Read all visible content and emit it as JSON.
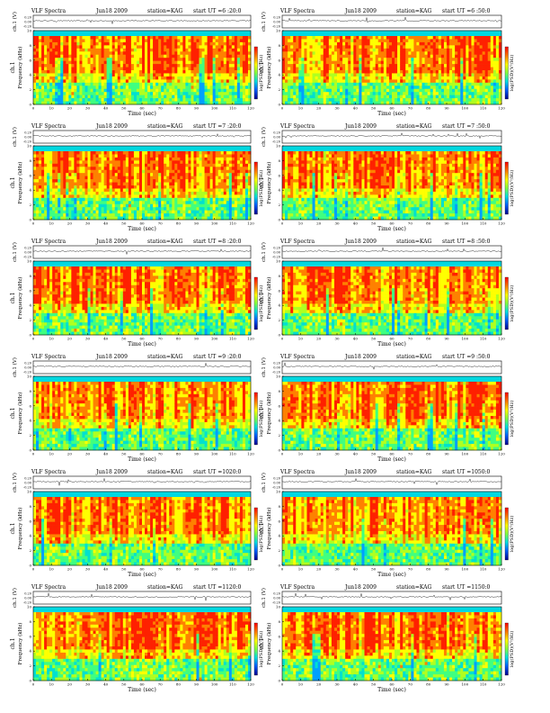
{
  "chart_data": [
    {
      "type": "heatmap",
      "title": "VLF Spectra",
      "date": "Jun18 2009",
      "station": "station=KAG",
      "start": "start  UT  =6 :20:0",
      "xlabel": "Time (sec)",
      "ylabel": "Frequency (kHz)",
      "ch_label": "ch.1",
      "amp_label": "ch.1 (V)",
      "cbar_label": "log(PSD)(V²/Hz)",
      "xlim": [
        0,
        120
      ],
      "ylim": [
        0,
        10
      ],
      "x_ticks": [
        0,
        10,
        20,
        30,
        40,
        50,
        60,
        70,
        80,
        90,
        100,
        110,
        120
      ],
      "y_ticks": [
        0,
        2,
        4,
        6,
        8,
        10
      ],
      "amp_ticks": [
        "0.20",
        "0.00",
        "-0.20"
      ]
    },
    {
      "type": "heatmap",
      "title": "VLF Spectra",
      "date": "Jun18 2009",
      "station": "station=KAG",
      "start": "start  UT  =6 :50:0",
      "xlabel": "Time (sec)",
      "ylabel": "Frequency (kHz)",
      "ch_label": "ch.1",
      "amp_label": "ch.1 (V)",
      "cbar_label": "log(PSD)(V²/Hz)",
      "xlim": [
        0,
        120
      ],
      "ylim": [
        0,
        10
      ],
      "x_ticks": [
        0,
        10,
        20,
        30,
        40,
        50,
        60,
        70,
        80,
        90,
        100,
        110,
        120
      ],
      "y_ticks": [
        0,
        2,
        4,
        6,
        8,
        10
      ],
      "amp_ticks": [
        "0.20",
        "0.00",
        "-0.20"
      ]
    },
    {
      "type": "heatmap",
      "title": "VLF Spectra",
      "date": "Jun18 2009",
      "station": "station=KAG",
      "start": "start  UT  =7 :20:0",
      "xlabel": "Time (sec)",
      "ylabel": "Frequency (kHz)",
      "ch_label": "ch.1",
      "amp_label": "ch.1 (V)",
      "cbar_label": "log(PSD)(V²/Hz)",
      "xlim": [
        0,
        120
      ],
      "ylim": [
        0,
        10
      ],
      "x_ticks": [
        0,
        10,
        20,
        30,
        40,
        50,
        60,
        70,
        80,
        90,
        100,
        110,
        120
      ],
      "y_ticks": [
        0,
        2,
        4,
        6,
        8,
        10
      ],
      "amp_ticks": [
        "0.20",
        "0.00",
        "-0.20"
      ]
    },
    {
      "type": "heatmap",
      "title": "VLF Spectra",
      "date": "Jun18 2009",
      "station": "station=KAG",
      "start": "start  UT  =7 :50:0",
      "xlabel": "Time (sec)",
      "ylabel": "Frequency (kHz)",
      "ch_label": "ch.1",
      "amp_label": "ch.1 (V)",
      "cbar_label": "log(PSD)(V²/Hz)",
      "xlim": [
        0,
        120
      ],
      "ylim": [
        0,
        10
      ],
      "x_ticks": [
        0,
        10,
        20,
        30,
        40,
        50,
        60,
        70,
        80,
        90,
        100,
        110,
        120
      ],
      "y_ticks": [
        0,
        2,
        4,
        6,
        8,
        10
      ],
      "amp_ticks": [
        "0.20",
        "0.00",
        "-0.20"
      ]
    },
    {
      "type": "heatmap",
      "title": "VLF Spectra",
      "date": "Jun18 2009",
      "station": "station=KAG",
      "start": "start  UT  =8 :20:0",
      "xlabel": "Time (sec)",
      "ylabel": "Frequency (kHz)",
      "ch_label": "ch.1",
      "amp_label": "ch.1 (V)",
      "cbar_label": "log(PSD)(V²/Hz)",
      "xlim": [
        0,
        120
      ],
      "ylim": [
        0,
        10
      ],
      "x_ticks": [
        0,
        10,
        20,
        30,
        40,
        50,
        60,
        70,
        80,
        90,
        100,
        110,
        120
      ],
      "y_ticks": [
        0,
        2,
        4,
        6,
        8,
        10
      ],
      "amp_ticks": [
        "0.20",
        "0.00",
        "-0.20"
      ]
    },
    {
      "type": "heatmap",
      "title": "VLF Spectra",
      "date": "Jun18 2009",
      "station": "station=KAG",
      "start": "start  UT  =8 :50:0",
      "xlabel": "Time (sec)",
      "ylabel": "Frequency (kHz)",
      "ch_label": "ch.1",
      "amp_label": "ch.1 (V)",
      "cbar_label": "log(PSD)(V²/Hz)",
      "xlim": [
        0,
        120
      ],
      "ylim": [
        0,
        10
      ],
      "x_ticks": [
        0,
        10,
        20,
        30,
        40,
        50,
        60,
        70,
        80,
        90,
        100,
        110,
        120
      ],
      "y_ticks": [
        0,
        2,
        4,
        6,
        8,
        10
      ],
      "amp_ticks": [
        "0.20",
        "0.00",
        "-0.20"
      ]
    },
    {
      "type": "heatmap",
      "title": "VLF Spectra",
      "date": "Jun18 2009",
      "station": "station=KAG",
      "start": "start  UT  =9 :20:0",
      "xlabel": "Time (sec)",
      "ylabel": "Frequency (kHz)",
      "ch_label": "ch.1",
      "amp_label": "ch.1 (V)",
      "cbar_label": "log(PSD)(V²/Hz)",
      "xlim": [
        0,
        120
      ],
      "ylim": [
        0,
        10
      ],
      "x_ticks": [
        0,
        10,
        20,
        30,
        40,
        50,
        60,
        70,
        80,
        90,
        100,
        110,
        120
      ],
      "y_ticks": [
        0,
        2,
        4,
        6,
        8,
        10
      ],
      "amp_ticks": [
        "0.20",
        "0.00",
        "-0.20"
      ]
    },
    {
      "type": "heatmap",
      "title": "VLF Spectra",
      "date": "Jun18 2009",
      "station": "station=KAG",
      "start": "start  UT  =9 :50:0",
      "xlabel": "Time (sec)",
      "ylabel": "Frequency (kHz)",
      "ch_label": "ch.1",
      "amp_label": "ch.1 (V)",
      "cbar_label": "log(PSD)(V²/Hz)",
      "xlim": [
        0,
        120
      ],
      "ylim": [
        0,
        10
      ],
      "x_ticks": [
        0,
        10,
        20,
        30,
        40,
        50,
        60,
        70,
        80,
        90,
        100,
        110,
        120
      ],
      "y_ticks": [
        0,
        2,
        4,
        6,
        8,
        10
      ],
      "amp_ticks": [
        "0.20",
        "0.00",
        "-0.20"
      ]
    },
    {
      "type": "heatmap",
      "title": "VLF Spectra",
      "date": "Jun18 2009",
      "station": "station=KAG",
      "start": "start  UT  =1020:0",
      "xlabel": "Time (sec)",
      "ylabel": "Frequency (kHz)",
      "ch_label": "ch.1",
      "amp_label": "ch.1 (V)",
      "cbar_label": "log(PSD)(V²/Hz)",
      "xlim": [
        0,
        120
      ],
      "ylim": [
        0,
        10
      ],
      "x_ticks": [
        0,
        10,
        20,
        30,
        40,
        50,
        60,
        70,
        80,
        90,
        100,
        110,
        120
      ],
      "y_ticks": [
        0,
        2,
        4,
        6,
        8,
        10
      ],
      "amp_ticks": [
        "0.20",
        "0.00",
        "-0.20"
      ]
    },
    {
      "type": "heatmap",
      "title": "VLF Spectra",
      "date": "Jun18 2009",
      "station": "station=KAG",
      "start": "start  UT  =1050:0",
      "xlabel": "Time (sec)",
      "ylabel": "Frequency (kHz)",
      "ch_label": "ch.1",
      "amp_label": "ch.1 (V)",
      "cbar_label": "log(PSD)(V²/Hz)",
      "xlim": [
        0,
        120
      ],
      "ylim": [
        0,
        10
      ],
      "x_ticks": [
        0,
        10,
        20,
        30,
        40,
        50,
        60,
        70,
        80,
        90,
        100,
        110,
        120
      ],
      "y_ticks": [
        0,
        2,
        4,
        6,
        8,
        10
      ],
      "amp_ticks": [
        "0.20",
        "0.00",
        "-0.20"
      ]
    },
    {
      "type": "heatmap",
      "title": "VLF Spectra",
      "date": "Jun18 2009",
      "station": "station=KAG",
      "start": "start  UT  =1120:0",
      "xlabel": "Time (sec)",
      "ylabel": "Frequency (kHz)",
      "ch_label": "ch.1",
      "amp_label": "ch.1 (V)",
      "cbar_label": "log(PSD)(V²/Hz)",
      "xlim": [
        0,
        120
      ],
      "ylim": [
        0,
        10
      ],
      "x_ticks": [
        0,
        10,
        20,
        30,
        40,
        50,
        60,
        70,
        80,
        90,
        100,
        110,
        120
      ],
      "y_ticks": [
        0,
        2,
        4,
        6,
        8,
        10
      ],
      "amp_ticks": [
        "0.20",
        "0.00",
        "-0.20"
      ]
    },
    {
      "type": "heatmap",
      "title": "VLF Spectra",
      "date": "Jun18 2009",
      "station": "station=KAG",
      "start": "start  UT  =1150:0",
      "xlabel": "Time (sec)",
      "ylabel": "Frequency (kHz)",
      "ch_label": "ch.1",
      "amp_label": "ch.1 (V)",
      "cbar_label": "log(PSD)(V²/Hz)",
      "xlim": [
        0,
        120
      ],
      "ylim": [
        0,
        10
      ],
      "x_ticks": [
        0,
        10,
        20,
        30,
        40,
        50,
        60,
        70,
        80,
        90,
        100,
        110,
        120
      ],
      "y_ticks": [
        0,
        2,
        4,
        6,
        8,
        10
      ],
      "amp_ticks": [
        "0.20",
        "0.00",
        "-0.20"
      ]
    }
  ],
  "colors": {
    "spectrogram": [
      "#00a0ff",
      "#00e0d0",
      "#40ff80",
      "#b0ff20",
      "#ffff00",
      "#ff8000",
      "#ff2000"
    ],
    "colorbar": [
      "#ff0000",
      "#ff8000",
      "#ffff00",
      "#80ff40",
      "#00e0e0",
      "#0060ff",
      "#000090"
    ],
    "top_band": "#00d8e0",
    "trace": "#000000"
  }
}
